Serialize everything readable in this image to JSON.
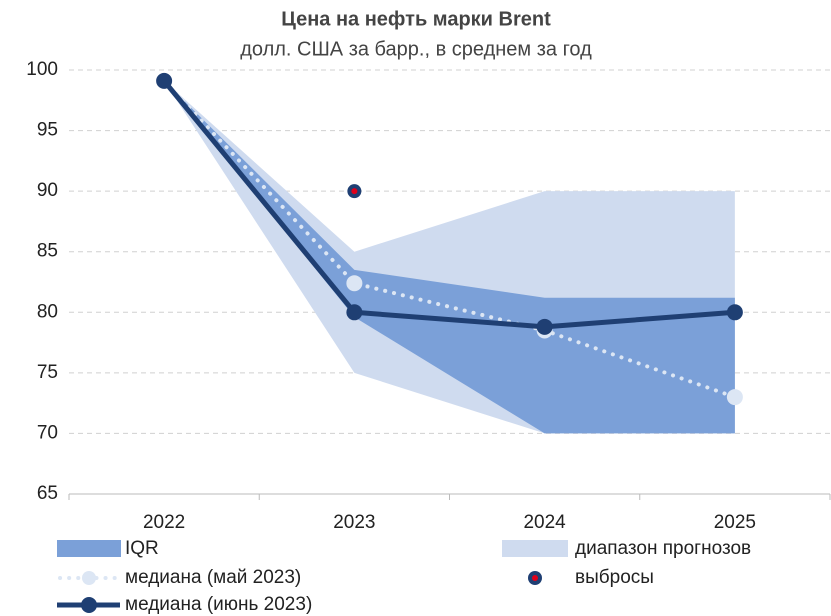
{
  "chart_data": {
    "type": "line",
    "title": "Цена на нефть марки Brent",
    "subtitle": "долл. США за барр., в среднем за год",
    "categories": [
      "2022",
      "2023",
      "2024",
      "2025"
    ],
    "ylim": [
      65,
      100
    ],
    "yticks": [
      65,
      70,
      75,
      80,
      85,
      90,
      95,
      100
    ],
    "grid": true,
    "bands": [
      {
        "name": "диапазон прогнозов",
        "color": "#cfdbef",
        "low": [
          99.1,
          75,
          70,
          70
        ],
        "high": [
          99.1,
          85,
          90,
          90
        ]
      },
      {
        "name": "IQR",
        "color": "#7ba0d8",
        "low": [
          99.1,
          79.6,
          70,
          70
        ],
        "high": [
          99.1,
          83.5,
          81.2,
          81.2
        ]
      }
    ],
    "series": [
      {
        "name": "медиана (май 2023)",
        "color": "#dce6f4",
        "style": "dotted",
        "values": [
          99.1,
          82.4,
          78.5,
          73
        ]
      },
      {
        "name": "выбросы",
        "color": "#1f3f73",
        "style": "marker",
        "values": [
          null,
          90,
          null,
          null
        ]
      },
      {
        "name": "медиана (июнь 2023)",
        "color": "#1f3f73",
        "style": "solid",
        "values": [
          99.1,
          80,
          78.8,
          80
        ]
      }
    ]
  }
}
